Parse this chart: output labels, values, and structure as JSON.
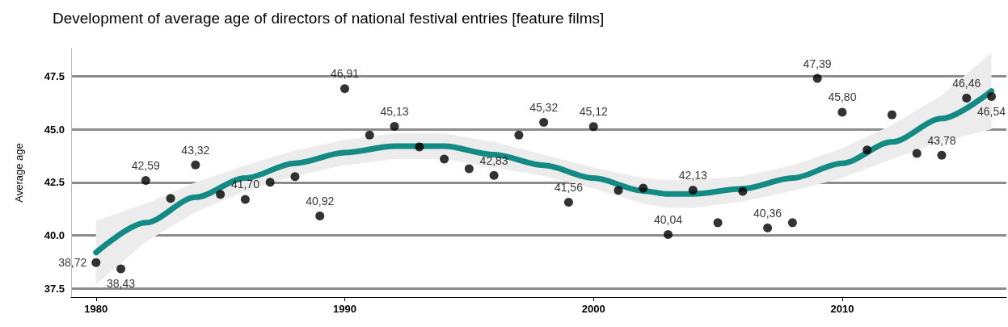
{
  "chart_data": {
    "type": "scatter",
    "title": "Development of average age of directors of national festival entries [feature films]",
    "ylabel": "Average age",
    "xlim": [
      1979,
      2016.6
    ],
    "xticks": [
      1980,
      1990,
      2000,
      2010
    ],
    "ylim": [
      37.1,
      48.8
    ],
    "yticks": [
      {
        "value": 37.5,
        "label": "37.5"
      },
      {
        "value": 40,
        "label": "40.0"
      },
      {
        "value": 42.5,
        "label": "42.5"
      },
      {
        "value": 45,
        "label": "45.0"
      },
      {
        "value": 47.5,
        "label": "47.5"
      }
    ],
    "grid": "y",
    "series": [
      {
        "type": "line",
        "color": "#138a84",
        "line_style": "solid",
        "marker": "none",
        "x": [
          1980,
          1982,
          1984,
          1986,
          1988,
          1990,
          1992,
          1994,
          1996,
          1998,
          2000,
          2002,
          2003,
          2004,
          2006,
          2008,
          2010,
          2012,
          2014,
          2016
        ],
        "values": [
          39.2,
          40.6,
          41.8,
          42.7,
          43.4,
          43.9,
          44.2,
          44.2,
          43.8,
          43.3,
          42.7,
          42.1,
          41.95,
          41.95,
          42.2,
          42.7,
          43.4,
          44.4,
          45.5,
          46.8
        ],
        "lower": [
          37.7,
          39.7,
          41.1,
          42.1,
          42.8,
          43.3,
          43.6,
          43.6,
          43.2,
          42.8,
          42.2,
          41.5,
          41.3,
          41.3,
          41.6,
          42.1,
          42.7,
          43.6,
          44.4,
          45.0
        ],
        "upper": [
          40.7,
          41.5,
          42.5,
          43.3,
          44.0,
          44.5,
          44.8,
          44.8,
          44.4,
          43.8,
          43.2,
          42.7,
          42.6,
          42.6,
          42.8,
          43.3,
          44.1,
          45.2,
          46.6,
          48.6
        ]
      },
      {
        "color": "#000000",
        "marker": "circle",
        "x": [
          1980,
          1981,
          1982,
          1983,
          1984,
          1985,
          1986,
          1987,
          1988,
          1989,
          1990,
          1991,
          1992,
          1993,
          1994,
          1995,
          1996,
          1997,
          1998,
          1999,
          2000,
          2001,
          2002,
          2003,
          2004,
          2005,
          2006,
          2007,
          2008,
          2009,
          2010,
          2011,
          2012,
          2013,
          2014,
          2015,
          2016
        ],
        "values": [
          38.72,
          38.43,
          42.59,
          41.74,
          43.32,
          41.93,
          41.7,
          42.5,
          42.77,
          40.92,
          46.91,
          44.73,
          45.13,
          44.17,
          43.6,
          43.14,
          42.83,
          44.73,
          45.32,
          41.56,
          45.12,
          42.12,
          42.23,
          40.04,
          42.13,
          40.6,
          42.08,
          40.36,
          40.6,
          47.39,
          45.8,
          44.02,
          45.68,
          43.86,
          43.78,
          46.46,
          46.54
        ],
        "value_labels": [
          "38,72",
          "38,43",
          "42,59",
          null,
          "43,32",
          null,
          "41,70",
          null,
          null,
          "40,92",
          "46,91",
          null,
          "45,13",
          null,
          null,
          null,
          "42,83",
          null,
          "45,32",
          "41,56",
          "45,12",
          null,
          null,
          "40,04",
          "42,13",
          null,
          null,
          "40,36",
          null,
          "47,39",
          "45,80",
          null,
          null,
          null,
          "43,78",
          "46,46",
          "46,54"
        ]
      }
    ]
  }
}
